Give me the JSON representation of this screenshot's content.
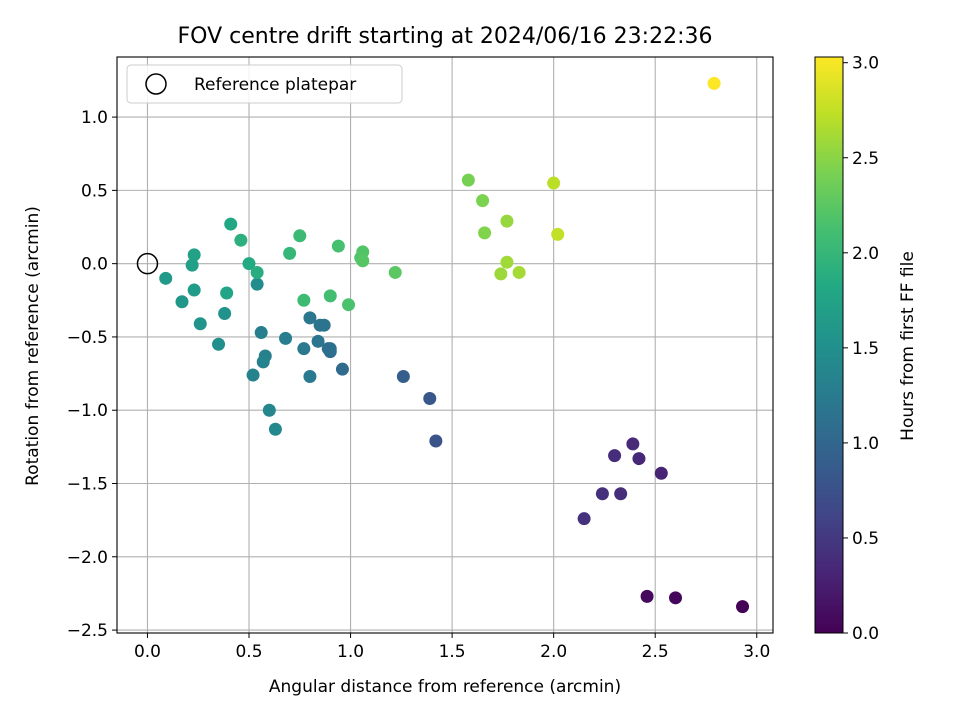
{
  "chart_data": {
    "type": "scatter",
    "title": "FOV centre drift starting at 2024/06/16 23:22:36",
    "xlabel": "Angular distance from reference (arcmin)",
    "ylabel": "Rotation from reference (arcmin)",
    "xlim": [
      -0.15,
      3.08
    ],
    "ylim": [
      -2.52,
      1.41
    ],
    "xticks": [
      0.0,
      0.5,
      1.0,
      1.5,
      2.0,
      2.5,
      3.0
    ],
    "xtick_labels": [
      "0.0",
      "0.5",
      "1.0",
      "1.5",
      "2.0",
      "2.5",
      "3.0"
    ],
    "yticks": [
      -2.5,
      -2.0,
      -1.5,
      -1.0,
      -0.5,
      0.0,
      0.5,
      1.0
    ],
    "ytick_labels": [
      "−2.5",
      "−2.0",
      "−1.5",
      "−1.0",
      "−0.5",
      "0.0",
      "0.5",
      "1.0"
    ],
    "grid": true,
    "legend": {
      "position": "top-left",
      "entries": [
        "Reference platepar"
      ]
    },
    "reference_point": {
      "x": 0.0,
      "y": 0.0,
      "marker": "open-circle"
    },
    "colorbar": {
      "label": "Hours from first FF file",
      "range": [
        0.0,
        3.03
      ],
      "ticks": [
        0.0,
        0.5,
        1.0,
        1.5,
        2.0,
        2.5,
        3.0
      ],
      "tick_labels": [
        "0.0",
        "0.5",
        "1.0",
        "1.5",
        "2.0",
        "2.5",
        "3.0"
      ],
      "colormap": "viridis"
    },
    "points": [
      {
        "x": 2.93,
        "y": -2.34,
        "c": 0.02
      },
      {
        "x": 2.6,
        "y": -2.28,
        "c": 0.05
      },
      {
        "x": 2.46,
        "y": -2.27,
        "c": 0.08
      },
      {
        "x": 2.53,
        "y": -1.43,
        "c": 0.3
      },
      {
        "x": 2.42,
        "y": -1.33,
        "c": 0.33
      },
      {
        "x": 2.39,
        "y": -1.23,
        "c": 0.36
      },
      {
        "x": 2.3,
        "y": -1.31,
        "c": 0.38
      },
      {
        "x": 2.33,
        "y": -1.57,
        "c": 0.4
      },
      {
        "x": 2.24,
        "y": -1.57,
        "c": 0.42
      },
      {
        "x": 2.15,
        "y": -1.74,
        "c": 0.44
      },
      {
        "x": 1.42,
        "y": -1.21,
        "c": 0.78
      },
      {
        "x": 1.39,
        "y": -0.92,
        "c": 0.82
      },
      {
        "x": 1.26,
        "y": -0.77,
        "c": 0.9
      },
      {
        "x": 0.96,
        "y": -0.72,
        "c": 1.05
      },
      {
        "x": 0.9,
        "y": -0.6,
        "c": 1.08
      },
      {
        "x": 0.89,
        "y": -0.58,
        "c": 1.1
      },
      {
        "x": 0.9,
        "y": -0.58,
        "c": 1.12
      },
      {
        "x": 0.85,
        "y": -0.42,
        "c": 1.15
      },
      {
        "x": 0.87,
        "y": -0.42,
        "c": 1.16
      },
      {
        "x": 0.84,
        "y": -0.53,
        "c": 1.18
      },
      {
        "x": 0.8,
        "y": -0.37,
        "c": 1.2
      },
      {
        "x": 0.77,
        "y": -0.58,
        "c": 1.22
      },
      {
        "x": 0.8,
        "y": -0.77,
        "c": 1.24
      },
      {
        "x": 0.68,
        "y": -0.51,
        "c": 1.27
      },
      {
        "x": 0.56,
        "y": -0.47,
        "c": 1.3
      },
      {
        "x": 0.58,
        "y": -0.63,
        "c": 1.32
      },
      {
        "x": 0.57,
        "y": -0.67,
        "c": 1.33
      },
      {
        "x": 0.52,
        "y": -0.76,
        "c": 1.35
      },
      {
        "x": 0.6,
        "y": -1.0,
        "c": 1.38
      },
      {
        "x": 0.63,
        "y": -1.13,
        "c": 1.4
      },
      {
        "x": 0.54,
        "y": -0.14,
        "c": 1.45
      },
      {
        "x": 0.35,
        "y": -0.55,
        "c": 1.5
      },
      {
        "x": 0.38,
        "y": -0.34,
        "c": 1.53
      },
      {
        "x": 0.26,
        "y": -0.41,
        "c": 1.56
      },
      {
        "x": 0.17,
        "y": -0.26,
        "c": 1.6
      },
      {
        "x": 0.09,
        "y": -0.1,
        "c": 1.63
      },
      {
        "x": 0.23,
        "y": -0.18,
        "c": 1.66
      },
      {
        "x": 0.22,
        "y": -0.01,
        "c": 1.7
      },
      {
        "x": 0.23,
        "y": 0.06,
        "c": 1.72
      },
      {
        "x": 0.39,
        "y": -0.2,
        "c": 1.76
      },
      {
        "x": 0.41,
        "y": 0.27,
        "c": 1.8
      },
      {
        "x": 0.5,
        "y": 0.0,
        "c": 1.84
      },
      {
        "x": 0.54,
        "y": -0.06,
        "c": 1.88
      },
      {
        "x": 0.46,
        "y": 0.16,
        "c": 1.92
      },
      {
        "x": 0.7,
        "y": 0.07,
        "c": 2.0
      },
      {
        "x": 0.75,
        "y": 0.19,
        "c": 2.04
      },
      {
        "x": 0.77,
        "y": -0.25,
        "c": 2.07
      },
      {
        "x": 0.9,
        "y": -0.22,
        "c": 2.1
      },
      {
        "x": 0.94,
        "y": 0.12,
        "c": 2.13
      },
      {
        "x": 0.99,
        "y": -0.28,
        "c": 2.15
      },
      {
        "x": 1.05,
        "y": 0.04,
        "c": 2.18
      },
      {
        "x": 1.06,
        "y": 0.08,
        "c": 2.2
      },
      {
        "x": 1.06,
        "y": 0.02,
        "c": 2.22
      },
      {
        "x": 1.22,
        "y": -0.06,
        "c": 2.25
      },
      {
        "x": 1.58,
        "y": 0.57,
        "c": 2.4
      },
      {
        "x": 1.65,
        "y": 0.43,
        "c": 2.43
      },
      {
        "x": 1.66,
        "y": 0.21,
        "c": 2.46
      },
      {
        "x": 1.77,
        "y": 0.29,
        "c": 2.55
      },
      {
        "x": 1.74,
        "y": -0.07,
        "c": 2.58
      },
      {
        "x": 1.77,
        "y": 0.01,
        "c": 2.6
      },
      {
        "x": 1.83,
        "y": -0.06,
        "c": 2.62
      },
      {
        "x": 2.0,
        "y": 0.55,
        "c": 2.72
      },
      {
        "x": 2.02,
        "y": 0.2,
        "c": 2.75
      },
      {
        "x": 2.79,
        "y": 1.23,
        "c": 3.02
      }
    ]
  }
}
